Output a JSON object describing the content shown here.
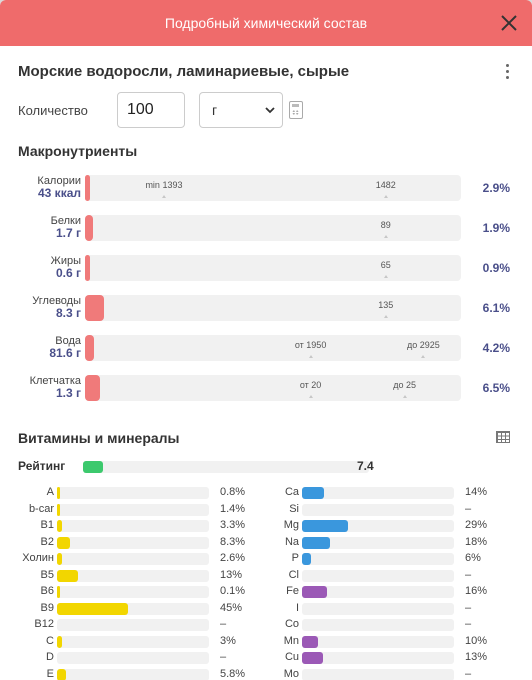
{
  "dialog": {
    "title": "Подробный химический состав"
  },
  "product": {
    "name": "Морские водоросли, ламинариевые, сырые"
  },
  "quantity": {
    "label": "Количество",
    "value": "100",
    "unit": "г"
  },
  "macros": {
    "title": "Макронутриенты",
    "items": [
      {
        "label": "Калории",
        "value": "43 ккал",
        "pct": "2.9%",
        "fill": 0.008,
        "marks": [
          {
            "text": "min 1393",
            "at": 0.21
          },
          {
            "text": "1482",
            "at": 0.8
          }
        ]
      },
      {
        "label": "Белки",
        "value": "1.7 г",
        "pct": "1.9%",
        "fill": 0.02,
        "marks": [
          {
            "text": "89",
            "at": 0.8
          }
        ]
      },
      {
        "label": "Жиры",
        "value": "0.6 г",
        "pct": "0.9%",
        "fill": 0.008,
        "marks": [
          {
            "text": "65",
            "at": 0.8
          }
        ]
      },
      {
        "label": "Углеводы",
        "value": "8.3 г",
        "pct": "6.1%",
        "fill": 0.05,
        "marks": [
          {
            "text": "135",
            "at": 0.8
          }
        ]
      },
      {
        "label": "Вода",
        "value": "81.6 г",
        "pct": "4.2%",
        "fill": 0.025,
        "marks": [
          {
            "text": "от 1950",
            "at": 0.6
          },
          {
            "text": "до 2925",
            "at": 0.9
          }
        ]
      },
      {
        "label": "Клетчатка",
        "value": "1.3 г",
        "pct": "6.5%",
        "fill": 0.04,
        "marks": [
          {
            "text": "от 20",
            "at": 0.6
          },
          {
            "text": "до 25",
            "at": 0.85
          }
        ]
      }
    ]
  },
  "vitamins": {
    "title": "Витамины и минералы",
    "rating": {
      "label": "Рейтинг",
      "value": "7.4",
      "fill": 0.07
    },
    "left": [
      {
        "label": "A",
        "value": "0.8%",
        "fill": 0.01,
        "color": "#f2d600"
      },
      {
        "label": "b-car",
        "value": "1.4%",
        "fill": 0.015,
        "color": "#f2d600"
      },
      {
        "label": "B1",
        "value": "3.3%",
        "fill": 0.035,
        "color": "#f2d600"
      },
      {
        "label": "B2",
        "value": "8.3%",
        "fill": 0.085,
        "color": "#f2d600"
      },
      {
        "label": "Холин",
        "value": "2.6%",
        "fill": 0.03,
        "color": "#f2d600"
      },
      {
        "label": "B5",
        "value": "13%",
        "fill": 0.135,
        "color": "#f2d600"
      },
      {
        "label": "B6",
        "value": "0.1%",
        "fill": 0.005,
        "color": "#f2d600"
      },
      {
        "label": "B9",
        "value": "45%",
        "fill": 0.47,
        "color": "#f2d600"
      },
      {
        "label": "B12",
        "value": "–",
        "fill": 0,
        "color": "#f2d600"
      },
      {
        "label": "C",
        "value": "3%",
        "fill": 0.03,
        "color": "#f2d600"
      },
      {
        "label": "D",
        "value": "–",
        "fill": 0,
        "color": "#f2d600"
      },
      {
        "label": "E",
        "value": "5.8%",
        "fill": 0.06,
        "color": "#f2d600"
      }
    ],
    "right": [
      {
        "label": "Ca",
        "value": "14%",
        "fill": 0.145,
        "color": "#3a97dd"
      },
      {
        "label": "Si",
        "value": "–",
        "fill": 0,
        "color": "#3a97dd"
      },
      {
        "label": "Mg",
        "value": "29%",
        "fill": 0.3,
        "color": "#3a97dd"
      },
      {
        "label": "Na",
        "value": "18%",
        "fill": 0.185,
        "color": "#3a97dd"
      },
      {
        "label": "P",
        "value": "6%",
        "fill": 0.06,
        "color": "#3a97dd"
      },
      {
        "label": "Cl",
        "value": "–",
        "fill": 0,
        "color": "#3a97dd"
      },
      {
        "label": "Fe",
        "value": "16%",
        "fill": 0.165,
        "color": "#9b59b6"
      },
      {
        "label": "I",
        "value": "–",
        "fill": 0,
        "color": "#9b59b6"
      },
      {
        "label": "Co",
        "value": "–",
        "fill": 0,
        "color": "#9b59b6"
      },
      {
        "label": "Mn",
        "value": "10%",
        "fill": 0.105,
        "color": "#9b59b6"
      },
      {
        "label": "Cu",
        "value": "13%",
        "fill": 0.135,
        "color": "#9b59b6"
      },
      {
        "label": "Mo",
        "value": "–",
        "fill": 0,
        "color": "#9b59b6"
      }
    ]
  }
}
